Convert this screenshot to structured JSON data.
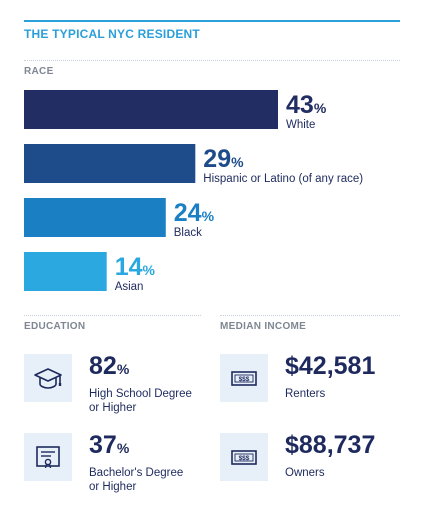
{
  "title": "THE TYPICAL NYC RESIDENT",
  "race": {
    "label": "RACE"
  },
  "chart_data": {
    "type": "bar",
    "orientation": "horizontal",
    "categories": [
      "White",
      "Hispanic or Latino (of any race)",
      "Black",
      "Asian"
    ],
    "values": [
      43,
      29,
      24,
      14
    ],
    "unit": "%",
    "colors": [
      "#222e63",
      "#1e4c8a",
      "#1b7fc4",
      "#2ba8e0"
    ],
    "grid": false,
    "legend": "none"
  },
  "education": {
    "label": "EDUCATION",
    "items": [
      {
        "value": "82",
        "unit": "%",
        "label": "High School Degree\nor Higher",
        "icon": "graduation-cap-icon"
      },
      {
        "value": "37",
        "unit": "%",
        "label": "Bachelor's Degree\nor Higher",
        "icon": "diploma-icon"
      }
    ]
  },
  "income": {
    "label": "MEDIAN INCOME",
    "items": [
      {
        "value": "$42,581",
        "label": "Renters",
        "icon": "cash-icon"
      },
      {
        "value": "$88,737",
        "label": "Owners",
        "icon": "cash-icon"
      }
    ]
  },
  "colors": {
    "navy": "#1e2a5e",
    "accent": "#2b9fd9",
    "icon_bg": "#e7f0f8",
    "section_label": "#7e8791"
  }
}
